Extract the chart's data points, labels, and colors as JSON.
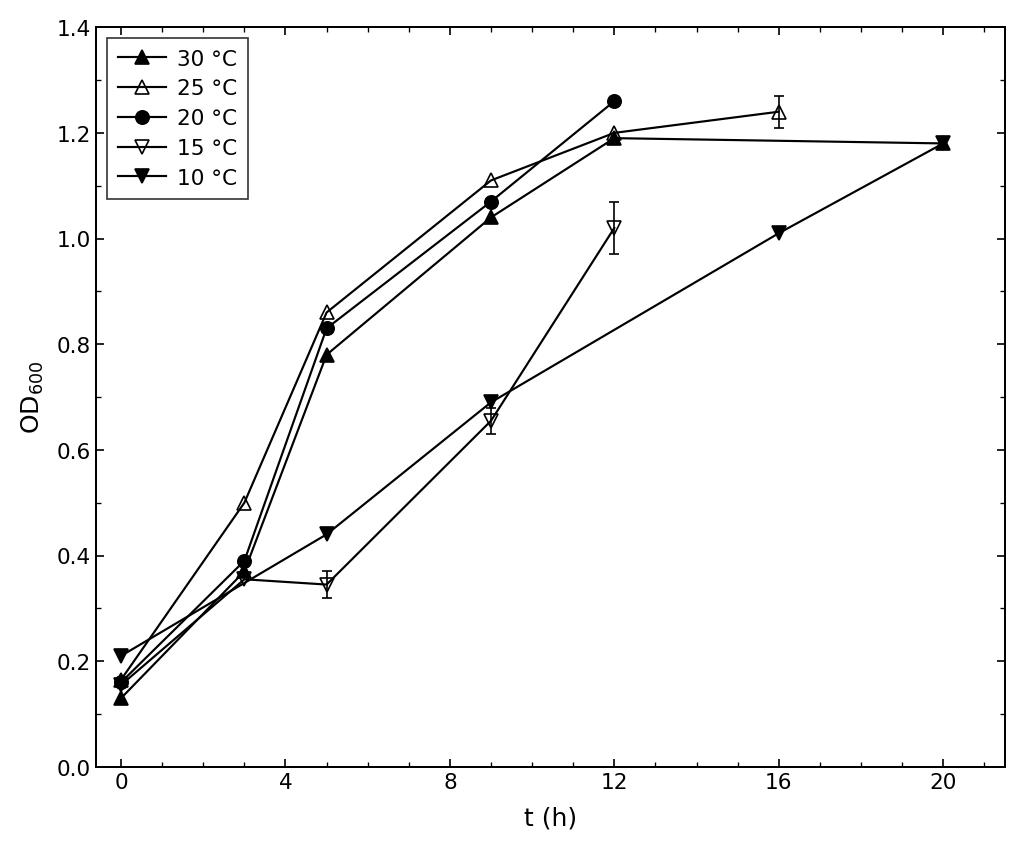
{
  "series": [
    {
      "label": "30 °C",
      "x": [
        0,
        3,
        5,
        9,
        12,
        20
      ],
      "y": [
        0.13,
        0.37,
        0.78,
        1.04,
        1.19,
        1.18
      ],
      "yerr": [
        null,
        null,
        null,
        null,
        null,
        null
      ],
      "marker": "^",
      "fillstyle": "full",
      "color": "black",
      "markersize": 8
    },
    {
      "label": "25 °C",
      "x": [
        0,
        3,
        5,
        9,
        12,
        16
      ],
      "y": [
        0.165,
        0.5,
        0.86,
        1.11,
        1.2,
        1.24
      ],
      "yerr": [
        null,
        null,
        null,
        null,
        null,
        0.03
      ],
      "marker": "^",
      "fillstyle": "none",
      "color": "black",
      "markersize": 8
    },
    {
      "label": "20 °C",
      "x": [
        0,
        3,
        5,
        9,
        12
      ],
      "y": [
        0.16,
        0.39,
        0.83,
        1.07,
        1.26
      ],
      "yerr": [
        null,
        null,
        null,
        null,
        null
      ],
      "marker": "o",
      "fillstyle": "full",
      "color": "black",
      "markersize": 8
    },
    {
      "label": "15 °C",
      "x": [
        0,
        3,
        5,
        9,
        12
      ],
      "y": [
        0.155,
        0.355,
        0.345,
        0.655,
        1.02
      ],
      "yerr": [
        null,
        null,
        0.025,
        0.025,
        0.05
      ],
      "marker": "v",
      "fillstyle": "none",
      "color": "black",
      "markersize": 8
    },
    {
      "label": "10 °C",
      "x": [
        0,
        5,
        9,
        16,
        20
      ],
      "y": [
        0.21,
        0.44,
        0.69,
        1.01,
        1.18
      ],
      "yerr": [
        null,
        null,
        null,
        null,
        null
      ],
      "marker": "v",
      "fillstyle": "full",
      "color": "black",
      "markersize": 8
    }
  ],
  "xlabel": "t (h)",
  "ylabel": "OD$_{600}$",
  "xlim": [
    -0.6,
    21.5
  ],
  "ylim": [
    0.0,
    1.4
  ],
  "xticks": [
    0,
    4,
    8,
    12,
    16,
    20
  ],
  "yticks": [
    0.0,
    0.2,
    0.4,
    0.6,
    0.8,
    1.0,
    1.2,
    1.4
  ],
  "legend_loc": "upper left",
  "linewidth": 1.3,
  "background_color": "#ffffff",
  "figsize": [
    8.54,
    7.09
  ],
  "dpi": 120
}
